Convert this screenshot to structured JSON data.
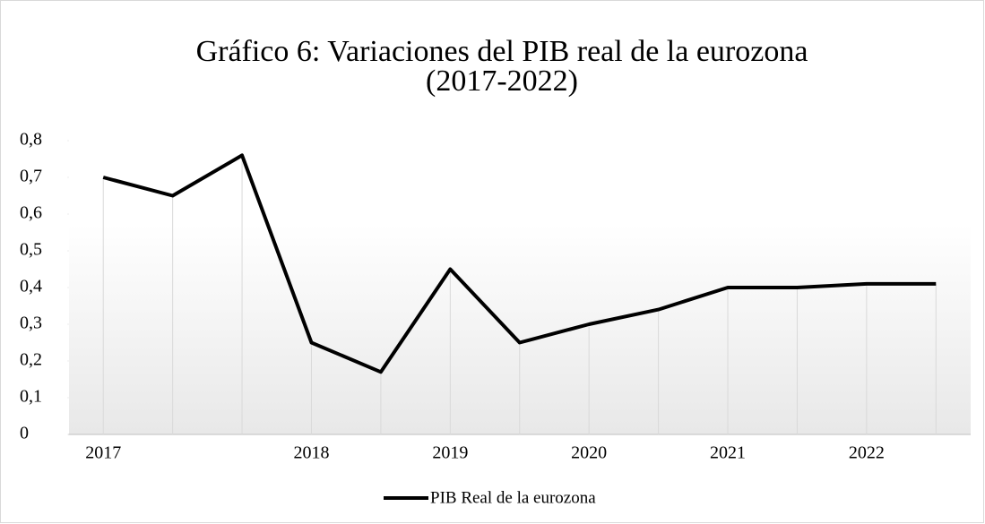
{
  "chart_data": {
    "type": "line",
    "title": [
      "Gráfico 6: Variaciones del PIB real de la eurozona",
      "(2017-2022)"
    ],
    "categories": [
      "2017",
      null,
      null,
      "2018",
      null,
      "2019",
      null,
      "2020",
      null,
      "2021",
      null,
      "2022",
      null
    ],
    "series": [
      {
        "name": "PIB Real de la eurozona",
        "color": "#000000",
        "values": [
          0.7,
          0.65,
          0.76,
          0.25,
          0.17,
          0.45,
          0.25,
          0.3,
          0.34,
          0.4,
          0.4,
          0.41,
          0.41
        ]
      }
    ],
    "ylim": [
      0,
      0.8
    ],
    "yticks": [
      0,
      {
        "value": 0.1,
        "label": "0,1"
      },
      {
        "value": 0.2,
        "label": "0,2"
      },
      {
        "value": 0.3,
        "label": "0,3"
      },
      {
        "value": 0.4,
        "label": "0,4"
      },
      {
        "value": 0.5,
        "label": "0,5"
      },
      {
        "value": 0.6,
        "label": "0,6"
      },
      {
        "value": 0.7,
        "label": "0,7"
      },
      {
        "value": 0.8,
        "label": "0,8"
      }
    ],
    "drop_lines": true,
    "legend": "bottom"
  }
}
